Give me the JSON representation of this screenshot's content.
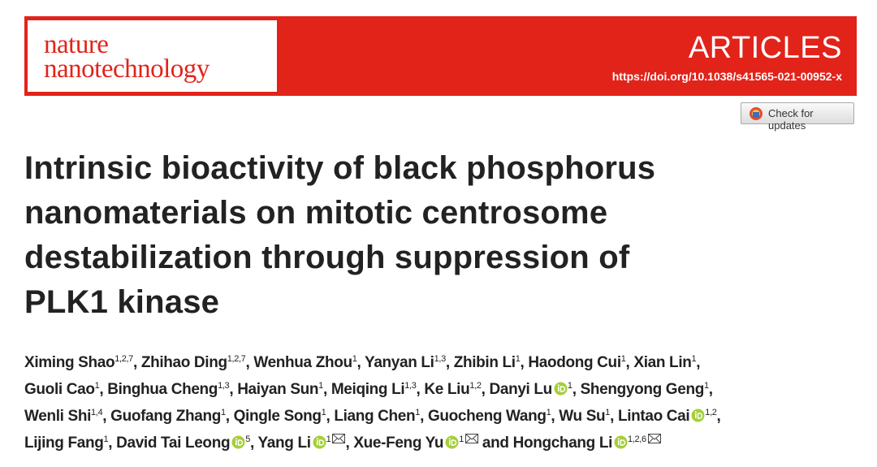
{
  "header": {
    "journal": [
      "nature",
      "nanotechnology"
    ],
    "section": "ARTICLES",
    "doi": "https://doi.org/10.1038/s41565-021-00952-x"
  },
  "check_updates": "Check for updates",
  "title_lines": [
    "Intrinsic bioactivity of black phosphorus",
    "nanomaterials on mitotic centrosome",
    "destabilization through suppression of",
    "PLK1 kinase"
  ],
  "author_lines": [
    [
      {
        "name": "Ximing Shao",
        "sup": "1,2,7",
        "after": ","
      },
      {
        "name": "Zhihao Ding",
        "sup": "1,2,7",
        "after": ","
      },
      {
        "name": "Wenhua Zhou",
        "sup": "1",
        "after": ","
      },
      {
        "name": "Yanyan Li",
        "sup": "1,3",
        "after": ","
      },
      {
        "name": "Zhibin Li",
        "sup": "1",
        "after": ","
      },
      {
        "name": "Haodong Cui",
        "sup": "1",
        "after": ","
      },
      {
        "name": "Xian Lin",
        "sup": "1",
        "after": ","
      }
    ],
    [
      {
        "name": "Guoli Cao",
        "sup": "1",
        "after": ","
      },
      {
        "name": "Binghua Cheng",
        "sup": "1,3",
        "after": ","
      },
      {
        "name": "Haiyan Sun",
        "sup": "1",
        "after": ","
      },
      {
        "name": "Meiqing Li",
        "sup": "1,3",
        "after": ","
      },
      {
        "name": "Ke Liu",
        "sup": "1,2",
        "after": ","
      },
      {
        "name": "Danyi Lu",
        "orcid": true,
        "sup": "1",
        "after": ","
      },
      {
        "name": "Shengyong Geng",
        "sup": "1",
        "after": ","
      }
    ],
    [
      {
        "name": "Wenli Shi",
        "sup": "1,4",
        "after": ","
      },
      {
        "name": "Guofang Zhang",
        "sup": "1",
        "after": ","
      },
      {
        "name": "Qingle Song",
        "sup": "1",
        "after": ","
      },
      {
        "name": "Liang Chen",
        "sup": "1",
        "after": ","
      },
      {
        "name": "Guocheng Wang",
        "sup": "1",
        "after": ","
      },
      {
        "name": "Wu Su",
        "sup": "1",
        "after": ","
      },
      {
        "name": "Lintao Cai",
        "orcid": true,
        "sup": "1,2",
        "after": ","
      }
    ],
    [
      {
        "name": "Lijing Fang",
        "sup": "1",
        "after": ","
      },
      {
        "name": "David Tai Leong",
        "orcid": true,
        "sup": "5",
        "after": ","
      },
      {
        "name": "Yang Li",
        "orcid": true,
        "sup": "1",
        "corresponding": true,
        "after": ","
      },
      {
        "name": "Xue-Feng Yu",
        "orcid": true,
        "sup": "1",
        "corresponding": true
      },
      {
        "before": "and",
        "name": "Hongchang Li",
        "orcid": true,
        "sup": "1,2,6",
        "corresponding": true
      }
    ]
  ]
}
